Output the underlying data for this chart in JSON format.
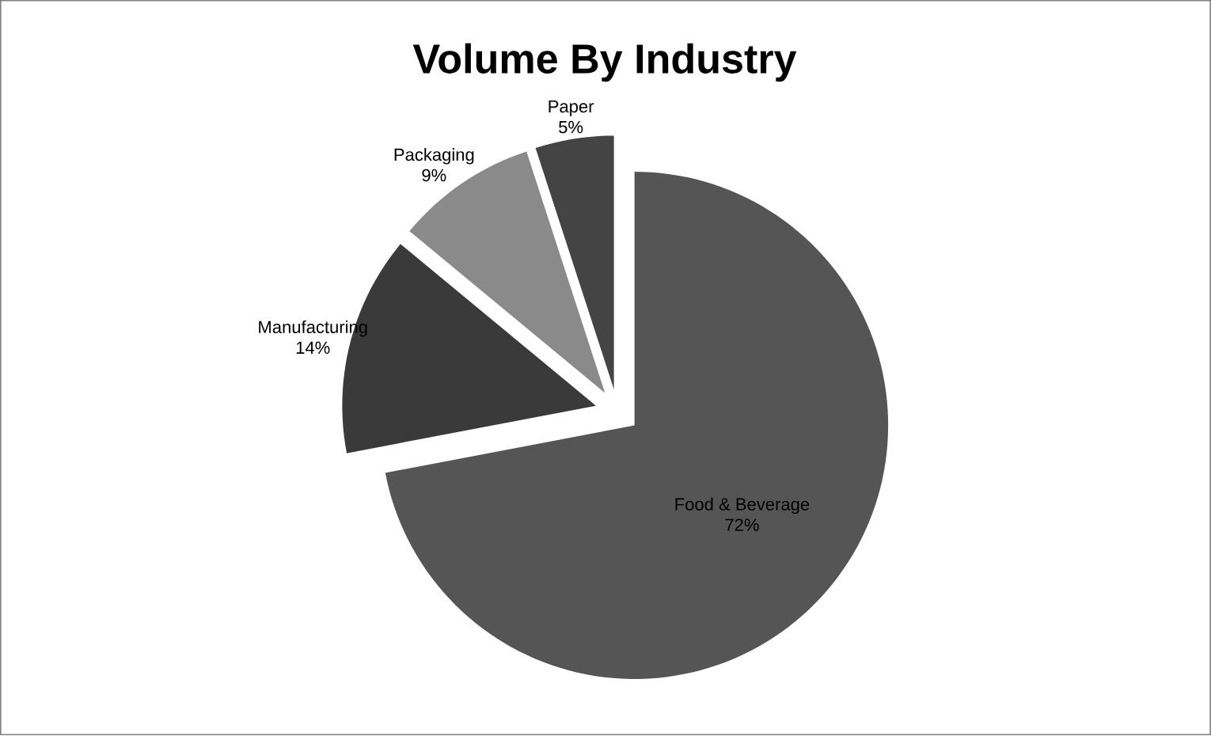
{
  "chart_data": {
    "type": "pie",
    "title": "Volume By Industry",
    "categories": [
      "Food & Beverage",
      "Manufacturing",
      "Packaging",
      "Paper"
    ],
    "values": [
      72,
      14,
      9,
      5
    ],
    "value_labels": [
      "72%",
      "14%",
      "9%",
      "5%"
    ],
    "colors": [
      "#555555",
      "#3a3a3a",
      "#8a8a8a",
      "#444444"
    ]
  }
}
